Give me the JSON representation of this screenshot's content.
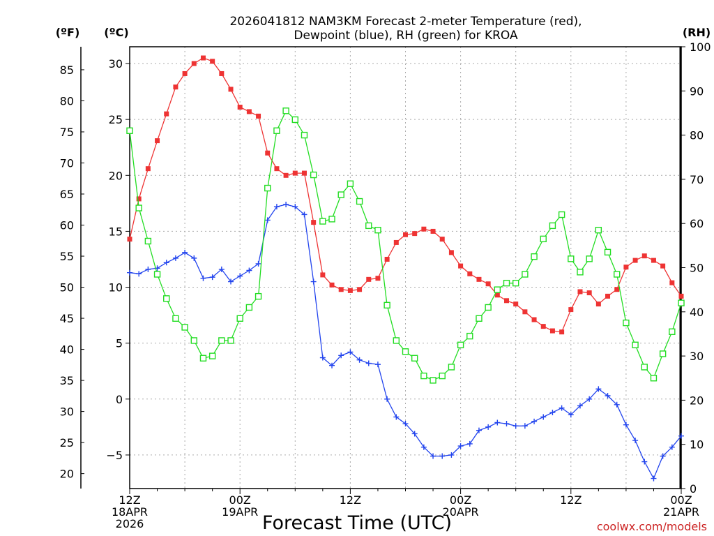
{
  "chart_data": {
    "type": "line",
    "title": [
      "2026041812 NAM3KM Forecast 2-meter Temperature (red),",
      "Dewpoint (blue), RH (green) for KROA"
    ],
    "xlabel": "Forecast Time (UTC)",
    "credit": "coolwx.com/models",
    "units": {
      "fahrenheit": "(ºF)",
      "celsius": "(ºC)",
      "rh": "(RH)"
    },
    "hours_range": [
      0,
      60
    ],
    "celsius_range": [
      -8,
      31.5
    ],
    "rh_range": [
      0,
      100
    ],
    "celsius_ticks": [
      "30",
      "25",
      "20",
      "15",
      "10",
      "5",
      "0",
      "−5"
    ],
    "fahrenheit_ticks": [
      "85",
      "80",
      "75",
      "70",
      "65",
      "60",
      "55",
      "50",
      "45",
      "40",
      "35",
      "30",
      "25",
      "20"
    ],
    "rh_ticks": [
      "100",
      "90",
      "80",
      "70",
      "60",
      "50",
      "40",
      "30",
      "20",
      "10",
      "0"
    ],
    "x_ticks": [
      {
        "hour": 0,
        "lines": [
          "12Z",
          "18APR",
          "2026"
        ]
      },
      {
        "hour": 12,
        "lines": [
          "00Z",
          "19APR"
        ]
      },
      {
        "hour": 24,
        "lines": [
          "12Z"
        ]
      },
      {
        "hour": 36,
        "lines": [
          "00Z",
          "20APR"
        ]
      },
      {
        "hour": 48,
        "lines": [
          "12Z"
        ]
      },
      {
        "hour": 60,
        "lines": [
          "00Z",
          "21APR"
        ]
      }
    ],
    "series": [
      {
        "name": "2-meter Temperature (°C)",
        "color": "#ee3333",
        "marker": "square-filled",
        "axis": "celsius",
        "hours": [
          0,
          1,
          2,
          3,
          4,
          5,
          6,
          7,
          8,
          9,
          10,
          11,
          12,
          13,
          14,
          15,
          16,
          17,
          18,
          19,
          20,
          21,
          22,
          23,
          24,
          25,
          26,
          27,
          28,
          29,
          30,
          31,
          32,
          33,
          34,
          35,
          36,
          37,
          38,
          39,
          40,
          41,
          42,
          43,
          44,
          45,
          46,
          47,
          48,
          49,
          50,
          51,
          52,
          53,
          54,
          55,
          56,
          57,
          58,
          59,
          60
        ],
        "values": [
          14.3,
          17.9,
          20.6,
          23.1,
          25.5,
          27.9,
          29.1,
          30.0,
          30.5,
          30.2,
          29.1,
          27.7,
          26.1,
          25.7,
          25.3,
          22.0,
          20.6,
          20.0,
          20.2,
          20.2,
          15.8,
          11.1,
          10.2,
          9.8,
          9.7,
          9.8,
          10.7,
          10.8,
          12.5,
          14.0,
          14.7,
          14.8,
          15.2,
          15.0,
          14.3,
          13.1,
          11.9,
          11.2,
          10.7,
          10.3,
          9.3,
          8.8,
          8.5,
          7.8,
          7.1,
          6.5,
          6.1,
          6.0,
          8.0,
          9.6,
          9.5,
          8.5,
          9.2,
          9.8,
          11.8,
          12.4,
          12.8,
          12.4,
          11.9,
          10.4,
          9.2
        ]
      },
      {
        "name": "Dewpoint (°C)",
        "color": "#2244ee",
        "marker": "plus",
        "axis": "celsius",
        "hours": [
          0,
          1,
          2,
          3,
          4,
          5,
          6,
          7,
          8,
          9,
          10,
          11,
          12,
          13,
          14,
          15,
          16,
          17,
          18,
          19,
          20,
          21,
          22,
          23,
          24,
          25,
          26,
          27,
          28,
          29,
          30,
          31,
          32,
          33,
          34,
          35,
          36,
          37,
          38,
          39,
          40,
          41,
          42,
          43,
          44,
          45,
          46,
          47,
          48,
          49,
          50,
          51,
          52,
          53,
          54,
          55,
          56,
          57,
          58,
          59,
          60
        ],
        "values": [
          11.3,
          11.2,
          11.6,
          11.7,
          12.2,
          12.6,
          13.1,
          12.6,
          10.8,
          10.9,
          11.6,
          10.5,
          11.0,
          11.5,
          12.1,
          16.0,
          17.2,
          17.4,
          17.2,
          16.5,
          10.5,
          3.7,
          3.0,
          3.9,
          4.2,
          3.5,
          3.2,
          3.1,
          0.0,
          -1.6,
          -2.2,
          -3.1,
          -4.3,
          -5.1,
          -5.1,
          -5.0,
          -4.2,
          -4.0,
          -2.8,
          -2.5,
          -2.1,
          -2.2,
          -2.4,
          -2.4,
          -2.0,
          -1.6,
          -1.2,
          -0.8,
          -1.4,
          -0.6,
          0.0,
          0.9,
          0.3,
          -0.5,
          -2.3,
          -3.7,
          -5.6,
          -7.1,
          -5.1,
          -4.3,
          -3.3
        ]
      },
      {
        "name": "RH (%)",
        "color": "#22dd22",
        "marker": "square-open",
        "axis": "rh",
        "hours": [
          0,
          1,
          2,
          3,
          4,
          5,
          6,
          7,
          8,
          9,
          10,
          11,
          12,
          13,
          14,
          15,
          16,
          17,
          18,
          19,
          20,
          21,
          22,
          23,
          24,
          25,
          26,
          27,
          28,
          29,
          30,
          31,
          32,
          33,
          34,
          35,
          36,
          37,
          38,
          39,
          40,
          41,
          42,
          43,
          44,
          45,
          46,
          47,
          48,
          49,
          50,
          51,
          52,
          53,
          54,
          55,
          56,
          57,
          58,
          59,
          60
        ],
        "values": [
          81,
          63.5,
          56,
          48.5,
          43,
          38.5,
          36.5,
          33.5,
          29.5,
          30,
          33.5,
          33.5,
          38.5,
          41,
          43.5,
          68,
          81,
          85.5,
          83.5,
          80,
          71,
          60.5,
          61,
          66.5,
          69,
          65,
          59.5,
          58.5,
          41.5,
          33.5,
          31,
          29.5,
          25.5,
          24.5,
          25.5,
          27.5,
          32.5,
          34.5,
          38.5,
          41,
          45,
          46.5,
          46.5,
          48.5,
          52.5,
          56.5,
          59.5,
          62,
          52,
          49,
          52,
          58.5,
          53.5,
          48.5,
          37.5,
          32.5,
          27.5,
          25,
          30.5,
          35.5,
          42
        ]
      }
    ]
  }
}
